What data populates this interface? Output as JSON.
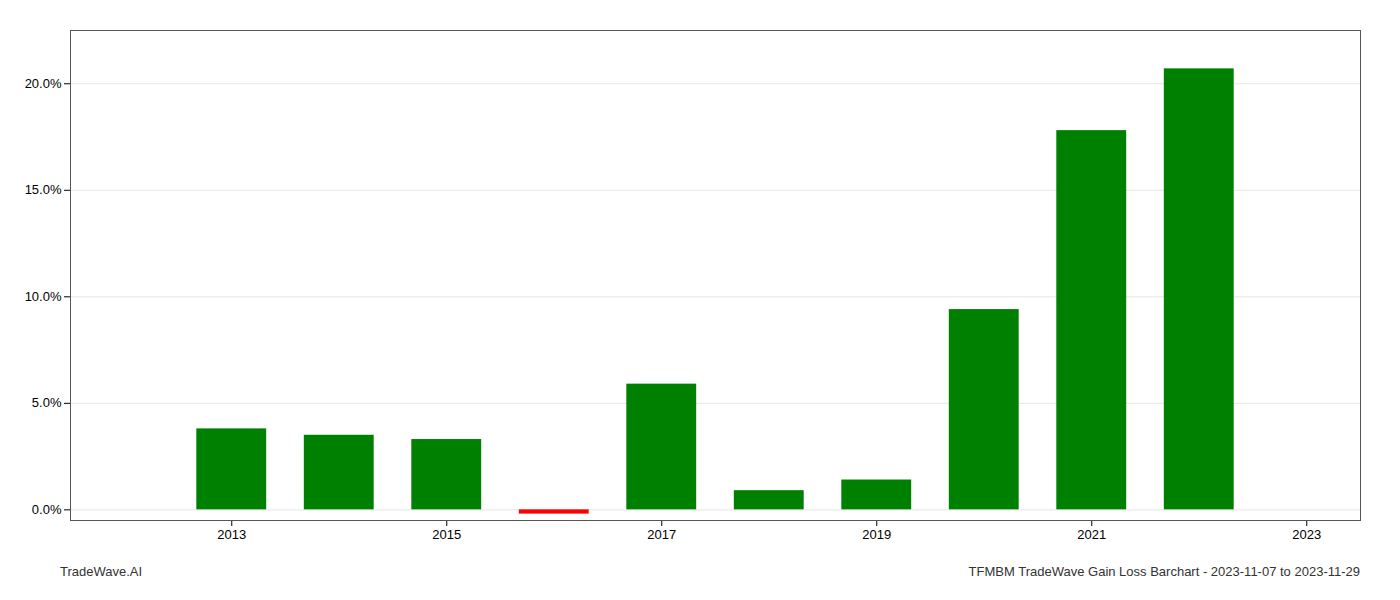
{
  "chart_data": {
    "type": "bar",
    "x": [
      2013,
      2014,
      2015,
      2016,
      2017,
      2018,
      2019,
      2020,
      2021,
      2022
    ],
    "values": [
      0.038,
      0.035,
      0.033,
      -0.002,
      0.059,
      0.009,
      0.014,
      0.094,
      0.178,
      0.207
    ],
    "colors": [
      "#008000",
      "#008000",
      "#008000",
      "#FF0000",
      "#008000",
      "#008000",
      "#008000",
      "#008000",
      "#008000",
      "#008000"
    ],
    "xlim": [
      2011.5,
      2023.5
    ],
    "xticks": [
      2013,
      2015,
      2017,
      2019,
      2021,
      2023
    ],
    "ylim": [
      -0.005,
      0.225
    ],
    "yticks": [
      {
        "value": 0.0,
        "label": "0.0%"
      },
      {
        "value": 0.05,
        "label": "5.0%"
      },
      {
        "value": 0.1,
        "label": "10.0%"
      },
      {
        "value": 0.15,
        "label": "15.0%"
      },
      {
        "value": 0.2,
        "label": "20.0%"
      }
    ],
    "grid": true,
    "annotations": [
      "TradeWave.AI",
      "TFMBM TradeWave Gain Loss Barchart - 2023-11-07 to 2023-11-29"
    ]
  }
}
